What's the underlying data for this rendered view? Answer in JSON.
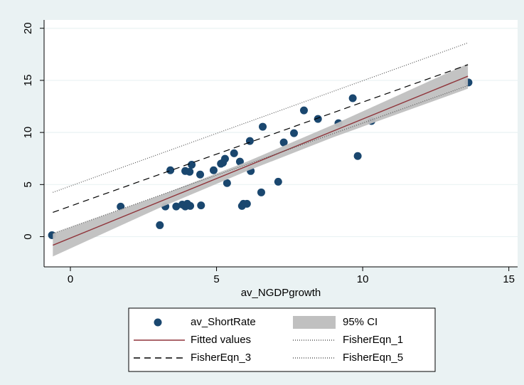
{
  "chart_data": {
    "type": "scatter",
    "x_label": "av_NGDPgrowth",
    "xlim": [
      -0.9,
      15.3
    ],
    "ylim": [
      -2.9,
      20.8
    ],
    "xticks": [
      0,
      5,
      10,
      15
    ],
    "yticks": [
      0,
      5,
      10,
      15,
      20
    ],
    "grid": true,
    "series": [
      {
        "name": "av_ShortRate",
        "kind": "scatter",
        "color": "#1a476f",
        "x": [
          -0.63,
          1.72,
          3.06,
          3.25,
          3.42,
          3.62,
          3.83,
          3.93,
          3.93,
          4.0,
          4.08,
          4.1,
          4.15,
          4.47,
          4.44,
          4.9,
          5.15,
          5.22,
          5.29,
          5.36,
          5.6,
          5.8,
          5.87,
          5.92,
          6.04,
          6.14,
          6.17,
          6.53,
          6.58,
          7.11,
          7.3,
          7.65,
          7.99,
          8.47,
          9.17,
          9.66,
          9.83,
          10.3,
          13.62
        ],
        "values": [
          0.14,
          2.88,
          1.1,
          2.9,
          6.37,
          2.9,
          3.08,
          6.3,
          2.9,
          3.15,
          6.23,
          2.95,
          6.9,
          3.0,
          5.96,
          6.37,
          7.0,
          7.1,
          7.47,
          5.14,
          8.0,
          7.2,
          2.95,
          3.15,
          3.15,
          9.18,
          6.3,
          4.25,
          10.55,
          5.27,
          9.04,
          9.93,
          12.12,
          11.3,
          10.89,
          13.29,
          7.74,
          11.1,
          14.8
        ]
      },
      {
        "name": "95% CI",
        "kind": "band",
        "color": "#c0c0c0",
        "x": [
          -0.6,
          3,
          6,
          9,
          13.6
        ],
        "lower": [
          -1.9,
          2.7,
          6.25,
          9.55,
          14.2
        ],
        "upper": [
          0.3,
          3.9,
          7.15,
          10.75,
          16.6
        ]
      },
      {
        "name": "Fitted values",
        "kind": "line",
        "color": "#90353b",
        "dash": "solid",
        "x": [
          -0.6,
          13.6
        ],
        "values": [
          -0.82,
          15.4
        ]
      },
      {
        "name": "FisherEqn_1",
        "kind": "line",
        "color": "#555555",
        "dash": "dotted",
        "x": [
          -0.6,
          13.6
        ],
        "values": [
          4.25,
          18.6
        ]
      },
      {
        "name": "FisherEqn_3",
        "kind": "line",
        "color": "#000000",
        "dash": "dashed",
        "x": [
          -0.6,
          13.6
        ],
        "values": [
          2.33,
          16.5
        ]
      },
      {
        "name": "FisherEqn_5",
        "kind": "line",
        "color": "#555555",
        "dash": "dotted",
        "x": [
          -0.6,
          13.6
        ],
        "values": [
          0.3,
          14.5
        ]
      }
    ]
  }
}
